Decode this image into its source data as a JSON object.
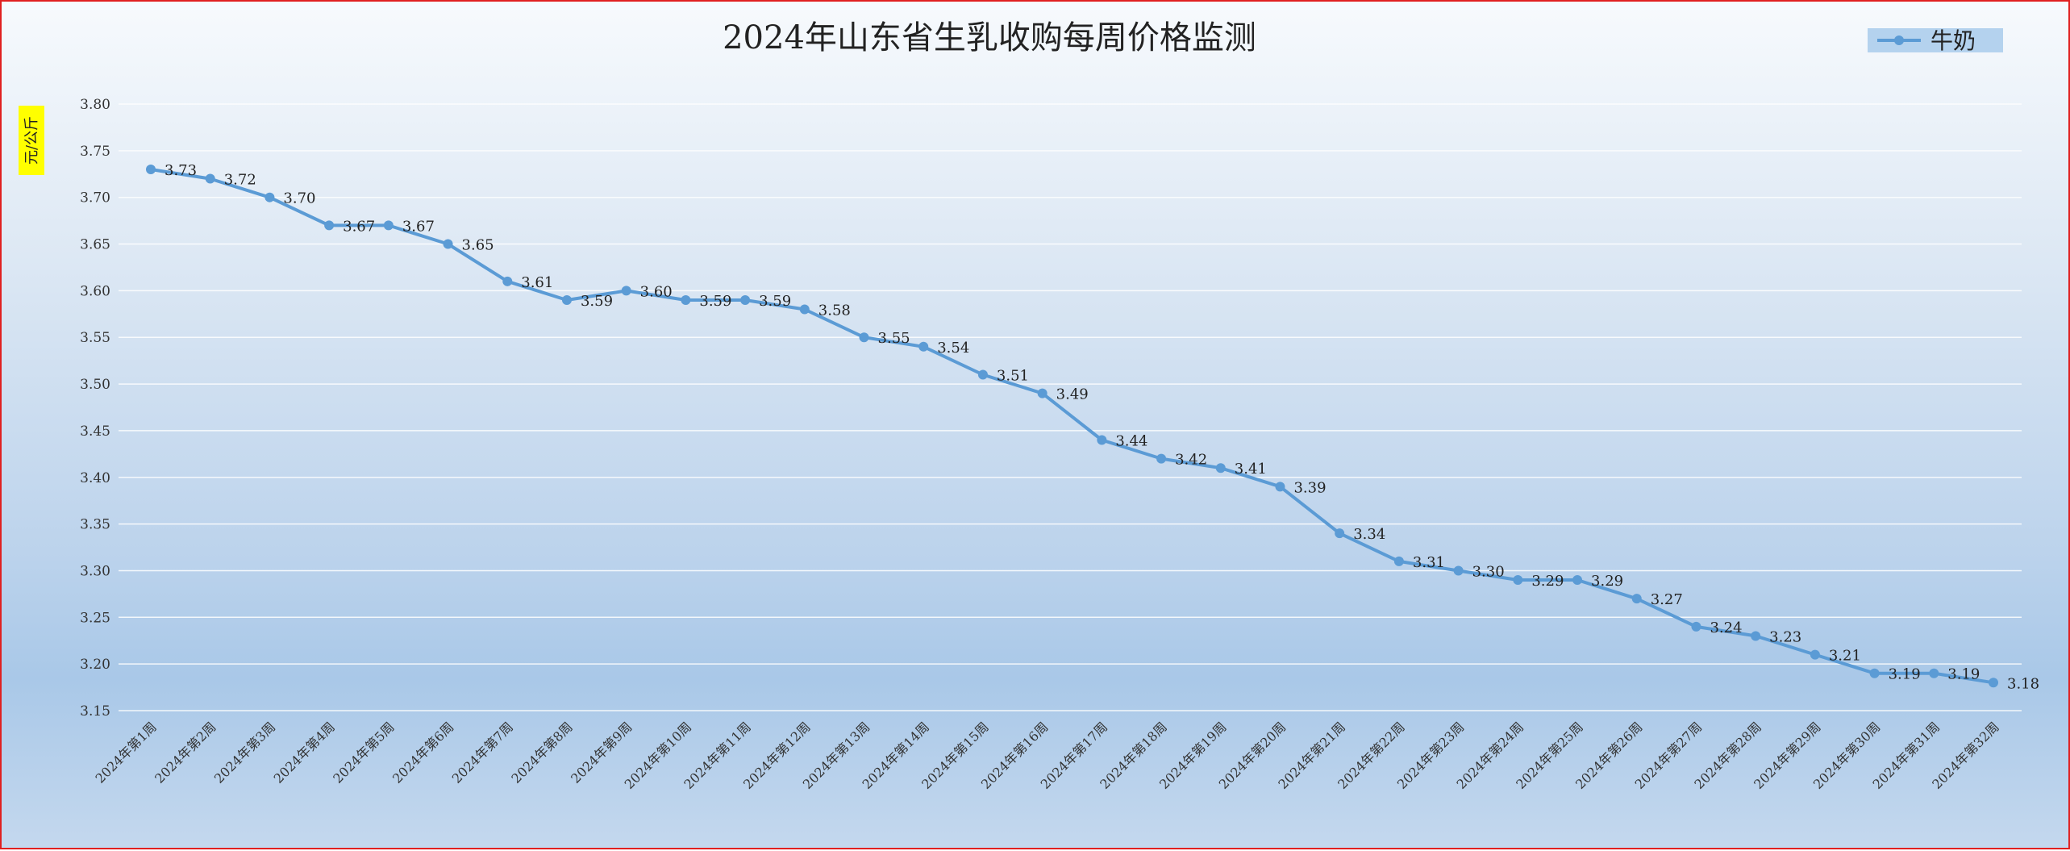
{
  "chart_data": {
    "type": "line",
    "title": "2024年山东省生乳收购每周价格监测",
    "ylabel": "元/公斤",
    "xlabel": "",
    "ylim": [
      3.15,
      3.8
    ],
    "yticks": [
      "3.15",
      "3.20",
      "3.25",
      "3.30",
      "3.35",
      "3.40",
      "3.45",
      "3.50",
      "3.55",
      "3.60",
      "3.65",
      "3.70",
      "3.75",
      "3.80"
    ],
    "grid": true,
    "legend_position": "top-right",
    "categories": [
      "2024年第1周",
      "2024年第2周",
      "2024年第3周",
      "2024年第4周",
      "2024年第5周",
      "2024年第6周",
      "2024年第7周",
      "2024年第8周",
      "2024年第9周",
      "2024年第10周",
      "2024年第11周",
      "2024年第12周",
      "2024年第13周",
      "2024年第14周",
      "2024年第15周",
      "2024年第16周",
      "2024年第17周",
      "2024年第18周",
      "2024年第19周",
      "2024年第20周",
      "2024年第21周",
      "2024年第22周",
      "2024年第23周",
      "2024年第24周",
      "2024年第25周",
      "2024年第26周",
      "2024年第27周",
      "2024年第28周",
      "2024年第29周",
      "2024年第30周",
      "2024年第31周",
      "2024年第32周"
    ],
    "series": [
      {
        "name": "牛奶",
        "color": "#5b9bd5",
        "values": [
          3.73,
          3.72,
          3.7,
          3.67,
          3.67,
          3.65,
          3.61,
          3.59,
          3.6,
          3.59,
          3.59,
          3.58,
          3.55,
          3.54,
          3.51,
          3.49,
          3.44,
          3.42,
          3.41,
          3.39,
          3.34,
          3.31,
          3.3,
          3.29,
          3.29,
          3.27,
          3.24,
          3.23,
          3.21,
          3.19,
          3.19,
          3.18
        ],
        "labels": [
          "3.73",
          "3.72",
          "3.70",
          "3.67",
          "3.67",
          "3.65",
          "3.61",
          "3.59",
          "3.60",
          "3.59",
          "3.59",
          "3.58",
          "3.55",
          "3.54",
          "3.51",
          "3.49",
          "3.44",
          "3.42",
          "3.41",
          "3.39",
          "3.34",
          "3.31",
          "3.30",
          "3.29",
          "3.29",
          "3.27",
          "3.24",
          "3.23",
          "3.21",
          "3.19",
          "3.19",
          "3.18"
        ]
      }
    ],
    "colors": {
      "border": "#e02020",
      "grid": "#ffffff",
      "ylabel_highlight": "#ffff00",
      "legend_bg": "#b4d2ee"
    }
  }
}
